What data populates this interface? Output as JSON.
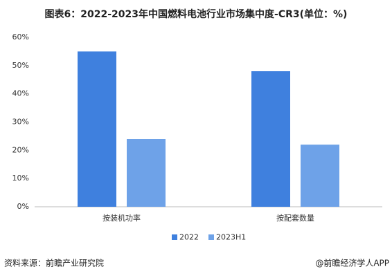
{
  "chart_data": {
    "type": "bar",
    "title": "图表6：2022-2023年中国燃料电池行业市场集中度-CR3(单位：%)",
    "categories": [
      "按装机功率",
      "按配套数量"
    ],
    "series": [
      {
        "name": "2022",
        "color": "#3f80de",
        "values": [
          55,
          48
        ]
      },
      {
        "name": "2023H1",
        "color": "#6ea2e8",
        "values": [
          24,
          22
        ]
      }
    ],
    "ylim": [
      0,
      60
    ],
    "yticks": [
      {
        "value": 0,
        "label": "0%"
      },
      {
        "value": 10,
        "label": "10%"
      },
      {
        "value": 20,
        "label": "20%"
      },
      {
        "value": 30,
        "label": "30%"
      },
      {
        "value": 40,
        "label": "40%"
      },
      {
        "value": 50,
        "label": "50%"
      },
      {
        "value": 60,
        "label": "60%"
      }
    ],
    "legend": "bottom",
    "source": "资料来源：前瞻产业研究院",
    "credit": "@前瞻经济学人APP"
  }
}
